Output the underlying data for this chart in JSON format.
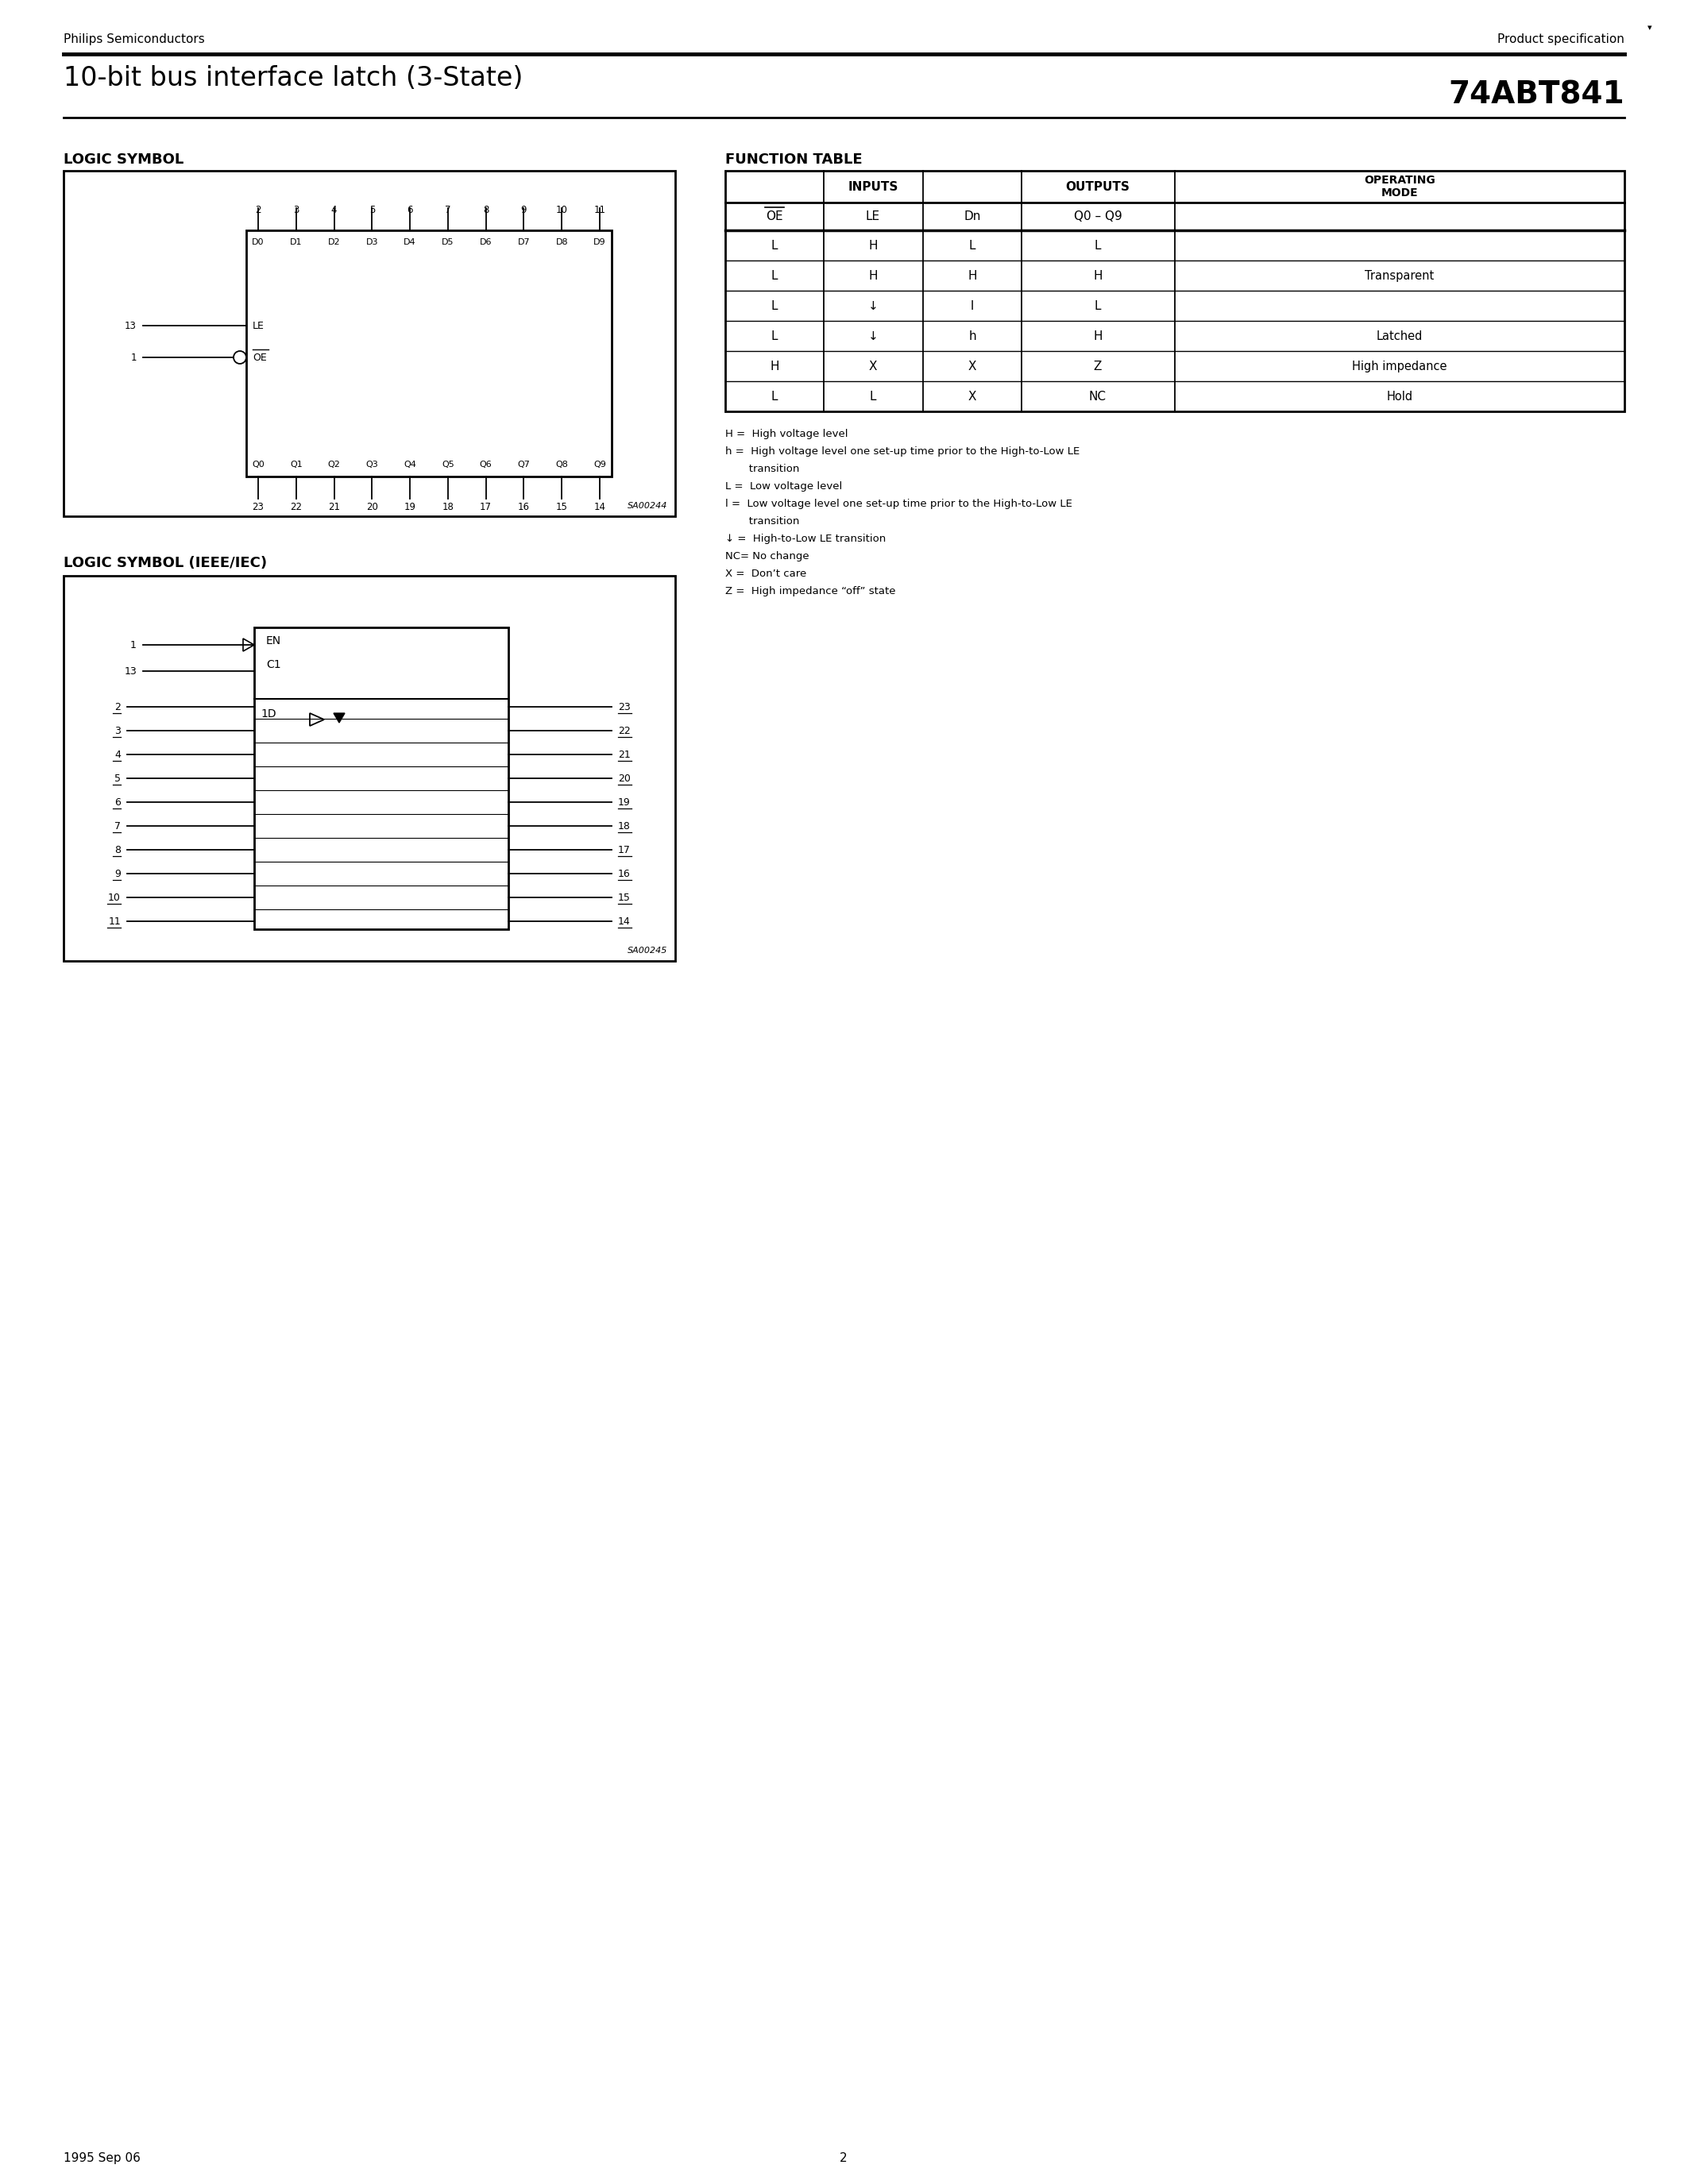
{
  "page_title_left": "10-bit bus interface latch (3-State)",
  "page_title_right": "74ABT841",
  "header_left": "Philips Semiconductors",
  "header_right": "Product specification",
  "footer_left": "1995 Sep 06",
  "footer_center": "2",
  "section1_title": "LOGIC SYMBOL",
  "section2_title": "FUNCTION TABLE",
  "section3_title": "LOGIC SYMBOL (IEEE/IEC)",
  "bg_color": "#ffffff",
  "text_color": "#000000",
  "input_pins_top": [
    "2",
    "3",
    "4",
    "5",
    "6",
    "7",
    "8",
    "9",
    "10",
    "11"
  ],
  "input_pins_labels": [
    "D0",
    "D1",
    "D2",
    "D3",
    "D4",
    "D5",
    "D6",
    "D7",
    "D8",
    "D9"
  ],
  "output_pins_bottom": [
    "23",
    "22",
    "21",
    "20",
    "19",
    "18",
    "17",
    "16",
    "15",
    "14"
  ],
  "output_pins_labels": [
    "Q0",
    "Q1",
    "Q2",
    "Q3",
    "Q4",
    "Q5",
    "Q6",
    "Q7",
    "Q8",
    "Q9"
  ],
  "row_data": [
    [
      "L",
      "H",
      "L",
      "L",
      ""
    ],
    [
      "L",
      "H",
      "H",
      "H",
      "Transparent"
    ],
    [
      "L",
      "↓",
      "l",
      "L",
      ""
    ],
    [
      "L",
      "↓",
      "h",
      "H",
      "Latched"
    ],
    [
      "H",
      "X",
      "X",
      "Z",
      "High impedance"
    ],
    [
      "L",
      "L",
      "X",
      "NC",
      "Hold"
    ]
  ],
  "legend_lines": [
    [
      "H",
      " =  High voltage level"
    ],
    [
      "h",
      " =  High voltage level one set-up time prior to the High-to-Low LE"
    ],
    [
      "",
      "       transition"
    ],
    [
      "L",
      " =  Low voltage level"
    ],
    [
      "l",
      " =  Low voltage level one set-up time prior to the High-to-Low LE"
    ],
    [
      "",
      "       transition"
    ],
    [
      "↓",
      " =  High-to-Low LE transition"
    ],
    [
      "NC=",
      " No change"
    ],
    [
      "X",
      " =  Don’t care"
    ],
    [
      "Z",
      " =  High impedance “off” state"
    ]
  ]
}
